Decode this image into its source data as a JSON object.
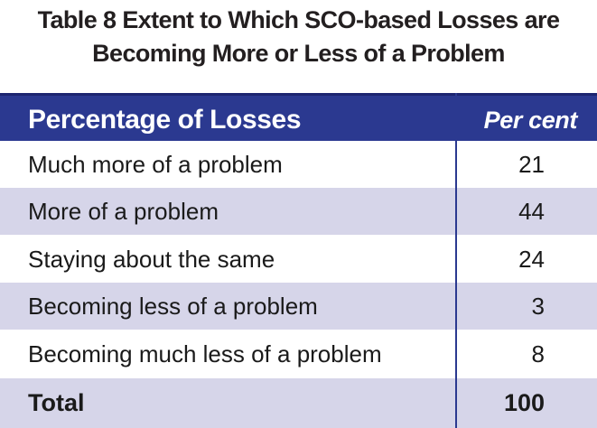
{
  "title": {
    "line1": "Table 8 Extent to Which SCO-based Losses are",
    "line2": "Becoming More or Less of a Problem"
  },
  "table": {
    "header": {
      "col1": "Percentage of Losses",
      "col2": "Per cent"
    },
    "rows": [
      {
        "label": "Much more of a problem",
        "value": "21"
      },
      {
        "label": "More of a problem",
        "value": "44"
      },
      {
        "label": "Staying about the same",
        "value": "24"
      },
      {
        "label": "Becoming less of a problem",
        "value": "3"
      },
      {
        "label": "Becoming much less of a problem",
        "value": "8"
      }
    ],
    "total": {
      "label": "Total",
      "value": "100"
    }
  },
  "colors": {
    "header_bg": "#2b3990",
    "stripe_bg": "#d6d5e9"
  }
}
